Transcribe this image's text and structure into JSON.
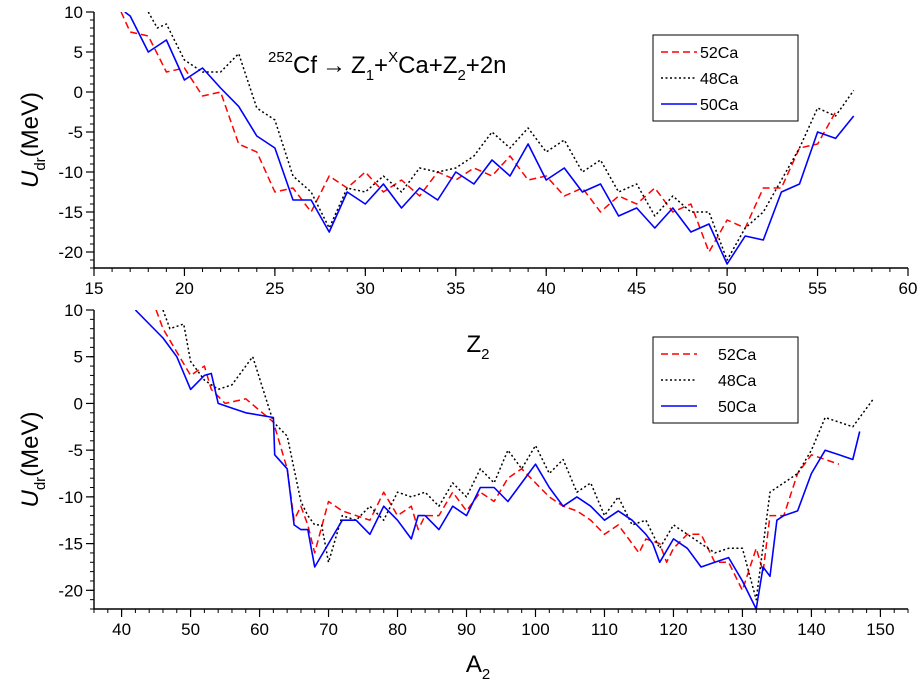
{
  "colors": {
    "52Ca": "#ff0000",
    "48Ca": "#000000",
    "50Ca": "#0000ff"
  },
  "reaction_text": {
    "target_mass": "252",
    "target": "Cf",
    "arrow": "→",
    "z1": "Z",
    "z1_sub": "1",
    "plus1": "+",
    "x_sup": "X",
    "ca": "Ca",
    "plus2": "+",
    "z2": "Z",
    "z2_sub": "2",
    "tail": "+2n"
  },
  "chart_data": [
    {
      "type": "line",
      "ylabel": "U",
      "ylabel_sub": "dr",
      "ylabel_unit": "(MeV)",
      "xlabel": "Z",
      "xlabel_sub": "2",
      "xlim": [
        15,
        60
      ],
      "ylim": [
        -22,
        10
      ],
      "xticks": [
        15,
        20,
        25,
        30,
        35,
        40,
        45,
        50,
        55,
        60
      ],
      "yticks": [
        10,
        5,
        0,
        -5,
        -10,
        -15,
        -20
      ],
      "legend": "top-right",
      "series": [
        {
          "name": "52Ca",
          "style": "dashed",
          "x": [
            16.5,
            17,
            18,
            19,
            20,
            21,
            22,
            23,
            24,
            25,
            26,
            27,
            28,
            29,
            30,
            31,
            32,
            33,
            34,
            35,
            36,
            37,
            38,
            39,
            40,
            41,
            42,
            43,
            44,
            45,
            46,
            47,
            48,
            49,
            50,
            51,
            52,
            53,
            54,
            55,
            56
          ],
          "y": [
            10,
            7.5,
            7,
            2.5,
            3,
            -0.5,
            0,
            -6.5,
            -7.5,
            -12.5,
            -12,
            -15,
            -10.5,
            -12,
            -10,
            -12.5,
            -11,
            -13,
            -10,
            -11,
            -9.5,
            -10.5,
            -8,
            -11,
            -10.5,
            -13,
            -12,
            -15,
            -13,
            -14,
            -12,
            -15,
            -14,
            -20,
            -16,
            -17,
            -12,
            -12,
            -7,
            -6.5,
            -2.5
          ]
        },
        {
          "name": "48Ca",
          "style": "dotted",
          "x": [
            18,
            18.5,
            19,
            20,
            21,
            22,
            23,
            24,
            25,
            26,
            27,
            28,
            29,
            30,
            31,
            32,
            33,
            34,
            35,
            36,
            37,
            38,
            39,
            40,
            41,
            42,
            43,
            44,
            45,
            46,
            47,
            48,
            49,
            50,
            51,
            52,
            53,
            54,
            55,
            56,
            57
          ],
          "y": [
            10,
            8,
            8.5,
            4,
            2.5,
            2.5,
            4.8,
            -2,
            -3.5,
            -10.5,
            -12.5,
            -17,
            -12,
            -12.5,
            -10.5,
            -12.5,
            -9.5,
            -10,
            -9.5,
            -8,
            -5,
            -7,
            -4.5,
            -7.5,
            -6,
            -10,
            -8.5,
            -12.5,
            -11.5,
            -15.5,
            -13,
            -15,
            -15,
            -21,
            -17,
            -15,
            -11,
            -7,
            -2,
            -3,
            0.2
          ]
        },
        {
          "name": "50Ca",
          "style": "solid",
          "x": [
            16.7,
            17,
            18,
            19,
            20,
            21,
            22,
            23,
            24,
            25,
            26,
            27,
            28,
            29,
            30,
            31,
            32,
            33,
            34,
            35,
            36,
            37,
            38,
            39,
            40,
            41,
            42,
            43,
            44,
            45,
            46,
            47,
            48,
            49,
            50,
            51,
            52,
            53,
            54,
            55,
            56,
            57
          ],
          "y": [
            10,
            9.5,
            5,
            6.5,
            1.5,
            3,
            0.5,
            -1.8,
            -5.5,
            -7,
            -13.5,
            -13.5,
            -17.5,
            -12.5,
            -14,
            -11.5,
            -14.5,
            -12,
            -13.5,
            -10,
            -11.5,
            -8.5,
            -10.5,
            -6.5,
            -11,
            -9.5,
            -12.5,
            -11.5,
            -15.5,
            -14.5,
            -17,
            -14.5,
            -17.5,
            -16.5,
            -21.5,
            -18,
            -18.5,
            -12.5,
            -11.5,
            -5,
            -5.8,
            -3
          ]
        }
      ]
    },
    {
      "type": "line",
      "ylabel": "U",
      "ylabel_sub": "dr",
      "ylabel_unit": "(MeV)",
      "xlabel": "A",
      "xlabel_sub": "2",
      "xlim": [
        36,
        154
      ],
      "ylim": [
        -22,
        10
      ],
      "xticks": [
        40,
        50,
        60,
        70,
        80,
        90,
        100,
        110,
        120,
        130,
        140,
        150
      ],
      "yticks": [
        10,
        5,
        0,
        -5,
        -10,
        -15,
        -20
      ],
      "legend": "top-right",
      "series": [
        {
          "name": "52Ca",
          "style": "dashed",
          "x": [
            45,
            46,
            48,
            50,
            52,
            53,
            55,
            58,
            62,
            64,
            65,
            66,
            67,
            68,
            70,
            72,
            74,
            76,
            78,
            80,
            82,
            83,
            84,
            86,
            88,
            90,
            92,
            94,
            96,
            98,
            100,
            102,
            104,
            106,
            108,
            110,
            112,
            114,
            115,
            116,
            118,
            119,
            120,
            122,
            124,
            126,
            128,
            130,
            132,
            133,
            134,
            136,
            138,
            140,
            142,
            144
          ],
          "y": [
            10,
            8,
            5.5,
            3,
            4,
            1.5,
            0,
            0.5,
            -2,
            -7,
            -12.5,
            -11,
            -13,
            -16,
            -10.5,
            -11.5,
            -12,
            -12.5,
            -9.5,
            -12,
            -11,
            -13.5,
            -12,
            -12,
            -9.5,
            -11.5,
            -9.5,
            -10.5,
            -8,
            -7,
            -8.5,
            -10,
            -11,
            -11.5,
            -12.5,
            -14,
            -13,
            -15,
            -16,
            -14.5,
            -15,
            -17,
            -15.5,
            -14,
            -14,
            -17,
            -17,
            -20,
            -15.5,
            -18,
            -12,
            -12,
            -7.5,
            -5.5,
            -6,
            -6.5
          ]
        },
        {
          "name": "48Ca",
          "style": "dotted",
          "x": [
            46,
            47,
            49,
            50,
            52,
            54,
            56,
            59,
            62,
            64,
            66,
            67,
            68,
            69,
            70,
            72,
            74,
            76,
            78,
            80,
            82,
            84,
            86,
            88,
            90,
            92,
            94,
            96,
            98,
            100,
            102,
            104,
            106,
            108,
            110,
            112,
            114,
            116,
            118,
            120,
            122,
            124,
            126,
            128,
            130,
            132,
            134,
            136,
            138,
            140,
            142,
            144,
            146,
            149
          ],
          "y": [
            10,
            8,
            8.5,
            4.5,
            2.5,
            1.5,
            2,
            5,
            -2,
            -3.5,
            -10.5,
            -12,
            -13,
            -13,
            -17,
            -12,
            -12.5,
            -11,
            -12.5,
            -9.5,
            -10,
            -9.5,
            -11,
            -8.5,
            -10,
            -7,
            -8.5,
            -5,
            -7,
            -4.5,
            -7.5,
            -6,
            -9.5,
            -8.5,
            -12,
            -10,
            -13,
            -12.5,
            -15.5,
            -13,
            -14,
            -15,
            -16,
            -15.5,
            -15.5,
            -21,
            -9.5,
            -8.5,
            -7.5,
            -5,
            -1.5,
            -2,
            -2.5,
            0.5
          ]
        },
        {
          "name": "50Ca",
          "style": "solid",
          "x": [
            42,
            44,
            46,
            48,
            50,
            52,
            53,
            54,
            56,
            58,
            62,
            62.2,
            64,
            65,
            66,
            67,
            68,
            70,
            72,
            74,
            76,
            78,
            80,
            82,
            83,
            84,
            86,
            88,
            90,
            92,
            94,
            96,
            98,
            100,
            102,
            104,
            106,
            108,
            110,
            112,
            114,
            116,
            117,
            118,
            120,
            122,
            124,
            126,
            128,
            130,
            132,
            133,
            134,
            135,
            136,
            138,
            140,
            142,
            144,
            146,
            147
          ],
          "y": [
            10,
            8.5,
            7,
            5,
            1.5,
            3,
            3.2,
            0,
            -0.5,
            -1,
            -1.5,
            -5.5,
            -7,
            -13,
            -13.5,
            -13.5,
            -17.5,
            -15,
            -12.5,
            -12.5,
            -14,
            -11,
            -12.5,
            -14.5,
            -12,
            -12,
            -13.5,
            -11,
            -12,
            -9,
            -9,
            -10.5,
            -8.5,
            -6.5,
            -9,
            -11,
            -10,
            -11,
            -12.5,
            -11.5,
            -12.5,
            -14,
            -15,
            -17,
            -14.5,
            -15.5,
            -17.5,
            -17,
            -16.5,
            -19,
            -22,
            -17.5,
            -18.5,
            -12.5,
            -12,
            -11.5,
            -7.5,
            -5,
            -5.5,
            -6,
            -3
          ]
        }
      ]
    }
  ]
}
